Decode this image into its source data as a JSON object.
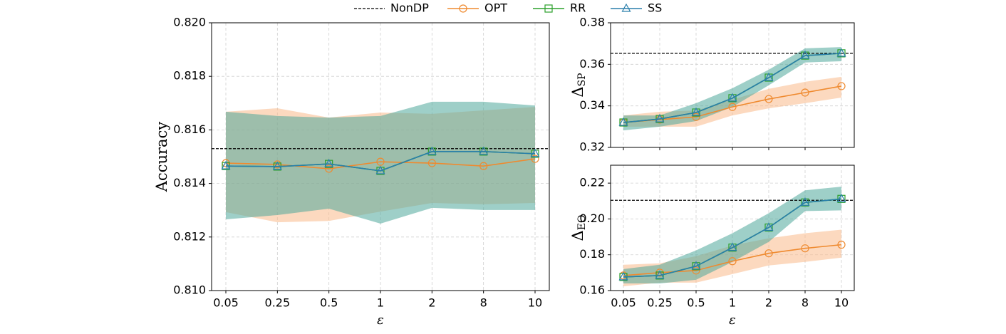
{
  "chart_data": [
    {
      "type": "line",
      "ylabel": "Accuracy",
      "xlabel": "ε",
      "categories": [
        "0.05",
        "0.25",
        "0.5",
        "1",
        "2",
        "8",
        "10"
      ],
      "ylim": [
        0.81,
        0.82
      ],
      "yticks": [
        {
          "value": 0.81,
          "label": "0.810"
        },
        0.812,
        0.814,
        0.816,
        0.818,
        {
          "value": 0.82,
          "label": "0.820"
        }
      ],
      "grid": true,
      "reference": {
        "name": "NonDP",
        "value": 0.8153,
        "color": "#000000"
      },
      "series": [
        {
          "name": "OPT",
          "color": "#ef8a2f",
          "marker": "circle",
          "band_color": "#f9b98a",
          "values": [
            0.81476,
            0.81471,
            0.81455,
            0.81481,
            0.81476,
            0.81465,
            0.81492
          ],
          "upper": [
            0.81668,
            0.81681,
            0.81646,
            0.81665,
            0.8166,
            0.81673,
            0.81686
          ],
          "lower": [
            0.81293,
            0.81255,
            0.8126,
            0.81295,
            0.81327,
            0.81322,
            0.81327
          ]
        },
        {
          "name": "RR",
          "color": "#2ca02c",
          "marker": "square",
          "values": [
            0.81465,
            0.81463,
            0.81473,
            0.81447,
            0.81519,
            0.81519,
            0.81511
          ]
        },
        {
          "name": "SS",
          "color": "#2a7fab",
          "marker": "triangle",
          "band_color": "#4fa89a",
          "values": [
            0.81465,
            0.81463,
            0.81473,
            0.81447,
            0.81519,
            0.81519,
            0.81511
          ],
          "upper": [
            0.81668,
            0.81652,
            0.81646,
            0.81652,
            0.81705,
            0.81705,
            0.81691
          ],
          "lower": [
            0.81266,
            0.81282,
            0.81306,
            0.8125,
            0.81309,
            0.81301,
            0.81301
          ]
        }
      ]
    },
    {
      "type": "line",
      "ylabel": "Δ",
      "ylabel_sub": "SP",
      "categories": [
        "0.05",
        "0.25",
        "0.5",
        "1",
        "2",
        "8",
        "10"
      ],
      "ylim": [
        0.32,
        0.38
      ],
      "yticks": [
        0.32,
        0.34,
        0.36,
        0.38
      ],
      "grid": true,
      "reference": {
        "name": "NonDP",
        "value": 0.3653,
        "color": "#000000"
      },
      "series": [
        {
          "name": "OPT",
          "color": "#ef8a2f",
          "marker": "circle",
          "band_color": "#f9b98a",
          "values": [
            0.332,
            0.3334,
            0.3347,
            0.3395,
            0.3433,
            0.3464,
            0.3495
          ],
          "upper": [
            0.3354,
            0.3372,
            0.3378,
            0.343,
            0.3482,
            0.3516,
            0.354
          ],
          "lower": [
            0.33,
            0.33,
            0.33,
            0.3354,
            0.3388,
            0.3413,
            0.344
          ]
        },
        {
          "name": "RR",
          "color": "#2ca02c",
          "marker": "square",
          "values": [
            0.332,
            0.3337,
            0.3368,
            0.3437,
            0.3536,
            0.3642,
            0.3653
          ]
        },
        {
          "name": "SS",
          "color": "#2a7fab",
          "marker": "triangle",
          "band_color": "#4fa89a",
          "values": [
            0.332,
            0.3337,
            0.3368,
            0.3437,
            0.3536,
            0.3642,
            0.3653
          ],
          "upper": [
            0.3354,
            0.3354,
            0.3413,
            0.3485,
            0.3574,
            0.3677,
            0.3683
          ],
          "lower": [
            0.3282,
            0.33,
            0.3327,
            0.3395,
            0.3499,
            0.3609,
            0.3615
          ]
        }
      ]
    },
    {
      "type": "line",
      "ylabel": "Δ",
      "ylabel_sub": "EO",
      "xlabel": "ε",
      "categories": [
        "0.05",
        "0.25",
        "0.5",
        "1",
        "2",
        "8",
        "10"
      ],
      "ylim": [
        0.16,
        0.23
      ],
      "yticks": [
        0.16,
        0.18,
        {
          "value": 0.2,
          "label": "0.20"
        },
        0.22
      ],
      "grid": true,
      "reference": {
        "name": "NonDP",
        "value": 0.2104,
        "color": "#000000"
      },
      "series": [
        {
          "name": "OPT",
          "color": "#ef8a2f",
          "marker": "circle",
          "band_color": "#f9b98a",
          "values": [
            0.1684,
            0.17,
            0.1712,
            0.1764,
            0.1808,
            0.1836,
            0.1856
          ],
          "upper": [
            0.1744,
            0.1752,
            0.1792,
            0.1852,
            0.1892,
            0.192,
            0.194
          ],
          "lower": [
            0.1624,
            0.1644,
            0.1644,
            0.1692,
            0.174,
            0.176,
            0.1784
          ]
        },
        {
          "name": "RR",
          "color": "#2ca02c",
          "marker": "square",
          "values": [
            0.1676,
            0.1684,
            0.1736,
            0.184,
            0.1952,
            0.2092,
            0.2112
          ]
        },
        {
          "name": "SS",
          "color": "#2a7fab",
          "marker": "triangle",
          "band_color": "#4fa89a",
          "values": [
            0.1676,
            0.1684,
            0.1736,
            0.184,
            0.1952,
            0.2092,
            0.2112
          ],
          "upper": [
            0.172,
            0.1744,
            0.1824,
            0.192,
            0.2032,
            0.216,
            0.218
          ],
          "lower": [
            0.164,
            0.164,
            0.166,
            0.176,
            0.1872,
            0.2044,
            0.2048
          ]
        }
      ]
    }
  ]
}
